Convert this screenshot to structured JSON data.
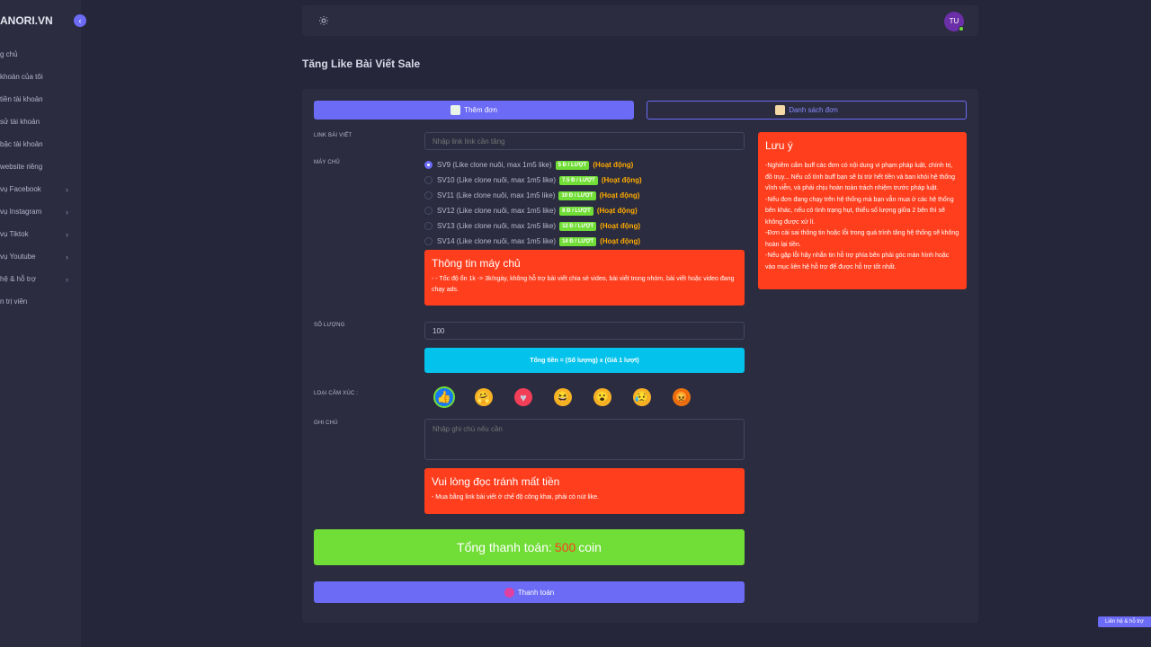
{
  "sidebar": {
    "brand": "ANORI.VN",
    "collapse_icon": "chevron-left",
    "items": [
      {
        "label": "g chủ",
        "has_children": false
      },
      {
        "label": "khoản của tôi",
        "has_children": false
      },
      {
        "label": "tiền tài khoản",
        "has_children": false
      },
      {
        "label": "sử tài khoản",
        "has_children": false
      },
      {
        "label": "bậc tài khoản",
        "has_children": false
      },
      {
        "label": "website riêng",
        "has_children": false
      },
      {
        "label": "vụ Facebook",
        "has_children": true
      },
      {
        "label": "vụ Instagram",
        "has_children": true
      },
      {
        "label": "vụ Tiktok",
        "has_children": true
      },
      {
        "label": "vụ Youtube",
        "has_children": true
      },
      {
        "label": "hệ & hỗ trợ",
        "has_children": true
      },
      {
        "label": "n trị viên",
        "has_children": false
      }
    ]
  },
  "topbar": {
    "theme_icon": "sun-icon",
    "avatar_initials": "TU"
  },
  "page": {
    "title": "Tăng Like Bài Viết Sale"
  },
  "tabs": {
    "add": "Thêm đơn",
    "list": "Danh sách đơn"
  },
  "form": {
    "link_label": "LINK BÀI VIẾT",
    "link_placeholder": "Nhập link link cần tăng",
    "server_label": "MÁY CHỦ",
    "servers": [
      {
        "name": "SV9 (Like clone nuôi, max 1m5 like)",
        "price": "5 Đ / LƯỢT",
        "status": "(Hoạt động)",
        "selected": true
      },
      {
        "name": "SV10 (Like clone nuôi, max 1m5 like)",
        "price": "7.5 Đ / LƯỢT",
        "status": "(Hoạt động)",
        "selected": false
      },
      {
        "name": "SV11 (Like clone nuôi, max 1m5 like)",
        "price": "10 Đ / LƯỢT",
        "status": "(Hoạt động)",
        "selected": false
      },
      {
        "name": "SV12 (Like clone nuôi, max 1m5 like)",
        "price": "8 Đ / LƯỢT",
        "status": "(Hoạt động)",
        "selected": false
      },
      {
        "name": "SV13 (Like clone nuôi, max 1m5 like)",
        "price": "12 Đ / LƯỢT",
        "status": "(Hoạt động)",
        "selected": false
      },
      {
        "name": "SV14 (Like clone nuôi, max 1m5 like)",
        "price": "14 Đ / LƯỢT",
        "status": "(Hoạt động)",
        "selected": false
      }
    ],
    "server_info": {
      "title": "Thông tin máy chủ",
      "text": "- - Tốc độ ổn 1k -> 3k/ngày, không hỗ trợ bài viết chia sẻ video, bài viết trong nhóm, bài viết hoặc video đang chạy ads."
    },
    "quantity_label": "SỐ LƯỢNG",
    "quantity_value": "100",
    "total_formula": "Tổng tiền = (Số lượng) x (Giá 1 lượt)",
    "reaction_label": "LOẠI CẢM XÚC :",
    "reactions": [
      {
        "name": "like",
        "glyph": "👍",
        "bg": "#1877f2",
        "selected": true
      },
      {
        "name": "care",
        "glyph": "🤗",
        "bg": "#f7b125",
        "selected": false
      },
      {
        "name": "love",
        "glyph": "♥",
        "bg": "#f33e58",
        "selected": false
      },
      {
        "name": "haha",
        "glyph": "😆",
        "bg": "#f7b125",
        "selected": false
      },
      {
        "name": "wow",
        "glyph": "😮",
        "bg": "#f7b125",
        "selected": false
      },
      {
        "name": "sad",
        "glyph": "😥",
        "bg": "#f7b125",
        "selected": false
      },
      {
        "name": "angry",
        "glyph": "😡",
        "bg": "#e9710f",
        "selected": false
      }
    ],
    "note_label": "GHI CHÚ",
    "note_placeholder": "Nhập ghi chú nếu cần",
    "warning": {
      "title": "Vui lòng đọc tránh mất tiền",
      "text": "- Mua bằng link bài viết ở chế độ công khai, phải có nút like."
    },
    "grand_total_prefix": "Tổng thanh toán:",
    "grand_total_amount": "500",
    "grand_total_unit": "coin",
    "pay_button": "Thanh toán"
  },
  "notice": {
    "title": "Lưu ý",
    "lines": [
      "-Nghiêm cấm buff các đơn có nội dung vi phạm pháp luật, chính trị, đồ trụy... Nếu cố tình buff bạn sẽ bị trừ hết tiền và ban khỏi hệ thống vĩnh viễn, và phải chịu hoàn toàn trách nhiệm trước pháp luật.",
      "-Nếu đơn đang chạy trên hệ thống mà bạn vẫn mua ở các hệ thống bên khác, nếu có tình trạng hụt, thiếu số lượng giữa 2 bên thì sẽ không được xử lí.",
      "-Đơn cài sai thông tin hoặc lỗi trong quá trình tăng hệ thống sẽ không hoàn lại tiền.",
      "-Nếu gặp lỗi hãy nhắn tin hỗ trợ phía bên phải góc màn hình hoặc vào mục liên hệ hỗ trợ để được hỗ trợ tốt nhất."
    ]
  },
  "help_button": "Liên hệ & hỗ trợ",
  "colors": {
    "primary": "#6b6bf5",
    "danger": "#ff3e1d",
    "success": "#71dd37",
    "info": "#03c3ec",
    "warning": "#ffab00"
  }
}
